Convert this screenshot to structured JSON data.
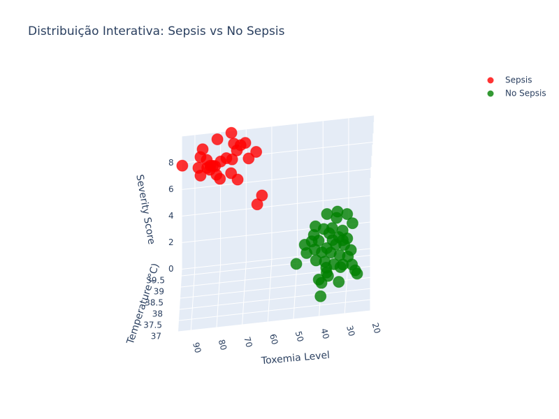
{
  "chart_data": {
    "type": "scatter3d",
    "title": "Distribuição Interativa: Sepsis vs No Sepsis",
    "xaxis_title": "Toxemia Level",
    "yaxis_title": "Temperature (°C)",
    "zaxis_title": "Severity Score",
    "xlim": [
      20,
      95
    ],
    "xticks": [
      20,
      30,
      40,
      50,
      60,
      70,
      80,
      90
    ],
    "ylim": [
      37,
      39.8
    ],
    "yticks": [
      37,
      37.5,
      38,
      38.5,
      39,
      39.5
    ],
    "zlim": [
      0,
      10
    ],
    "zticks": [
      0,
      2,
      4,
      6,
      8
    ],
    "grid": true,
    "legend": "top-right",
    "series": [
      {
        "name": "Sepsis",
        "color": "#ff0000",
        "x": [
          80.9,
          75.5,
          74.4,
          70.0,
          71.9,
          73.3,
          65.7,
          68.7,
          86.7,
          87.5,
          85.0,
          77.4,
          75.2,
          79.6,
          82.6,
          88.3,
          83.7,
          81.8,
          81.2,
          87.5,
          83.9,
          79.9,
          75.5,
          73.0,
          63.5,
          65.4,
          94.6,
          84.8
        ],
        "y": [
          39.2,
          39.3,
          39.1,
          39.2,
          39.3,
          39.2,
          39.1,
          39.2,
          39.3,
          39.2,
          39.1,
          39.2,
          39.3,
          39.2,
          39.1,
          39.2,
          39.3,
          39.2,
          39.1,
          39.2,
          39.3,
          39.2,
          39.1,
          39.2,
          39.2,
          39.3,
          39.2,
          39.1
        ],
        "z": [
          10.5,
          10.7,
          10.2,
          10.0,
          9.7,
          9.5,
          9.4,
          8.8,
          9.7,
          9.3,
          9.2,
          9.0,
          8.7,
          8.8,
          8.7,
          8.5,
          8.4,
          8.5,
          8.0,
          7.9,
          8.1,
          7.5,
          8.0,
          7.3,
          5.9,
          5.1,
          8.8,
          8.6
        ]
      },
      {
        "name": "No Sepsis",
        "color": "#008000",
        "x": [
          38.0,
          33.9,
          30.1,
          34.2,
          42.4,
          39.1,
          35.8,
          31.7,
          27.9,
          42.9,
          36.9,
          33.1,
          29.8,
          41.0,
          46.4,
          37.7,
          34.2,
          30.9,
          28.2,
          45.6,
          39.6,
          36.1,
          32.6,
          29.3,
          41.8,
          38.3,
          34.7,
          31.2,
          27.6,
          49.5,
          37.7,
          26.3,
          25.5,
          32.1,
          37.5,
          40.5,
          36.9,
          32.6,
          39.4,
          39.6,
          42.4,
          35.5,
          31.5,
          43.7
        ],
        "y": [
          39.0,
          39.0,
          38.9,
          38.9,
          38.8,
          38.7,
          38.7,
          38.6,
          38.7,
          38.6,
          38.6,
          38.5,
          38.4,
          38.5,
          38.5,
          38.3,
          38.3,
          38.3,
          38.1,
          38.3,
          38.2,
          38.2,
          38.1,
          38.0,
          38.1,
          38.0,
          37.9,
          37.9,
          37.8,
          38.1,
          37.9,
          37.7,
          37.6,
          37.8,
          37.8,
          37.7,
          37.7,
          37.5,
          37.6,
          37.3,
          38.3,
          38.4,
          38.4,
          38.5
        ],
        "z": [
          4.3,
          4.4,
          4.3,
          4.1,
          3.8,
          3.7,
          3.7,
          3.6,
          3.9,
          3.5,
          3.5,
          3.3,
          3.3,
          3.2,
          3.0,
          2.9,
          3.1,
          3.0,
          2.9,
          2.7,
          2.8,
          2.7,
          2.6,
          2.6,
          2.4,
          2.4,
          2.3,
          2.2,
          2.3,
          2.3,
          2.1,
          2.0,
          1.9,
          2.2,
          1.9,
          1.6,
          1.8,
          1.6,
          1.5,
          1.0,
          2.9,
          3.3,
          3.2,
          3.2
        ]
      }
    ]
  }
}
